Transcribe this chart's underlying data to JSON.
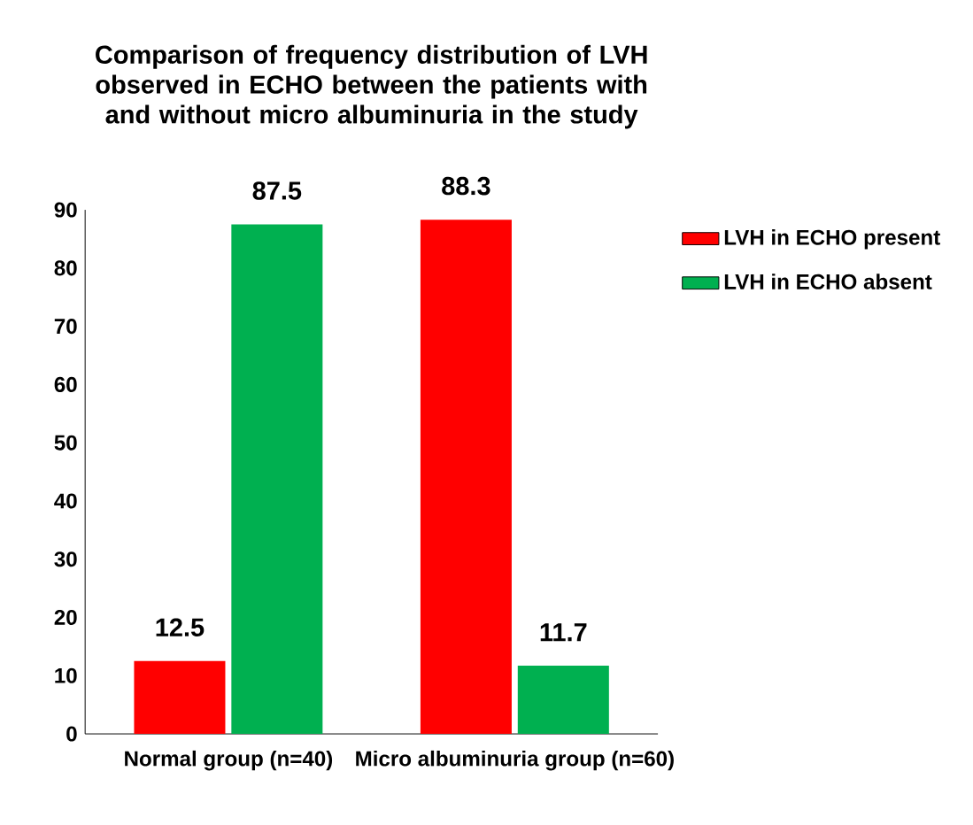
{
  "chart_data": {
    "type": "bar",
    "title": "Comparison of frequency distribution of LVH observed in ECHO between the patients with and without micro albuminuria in the study",
    "categories": [
      "Normal group (n=40)",
      "Micro albuminuria group (n=60)"
    ],
    "series": [
      {
        "name": "LVH in ECHO present",
        "color": "#ff0000",
        "values": [
          12.5,
          88.3
        ]
      },
      {
        "name": "LVH in ECHO absent",
        "color": "#00b050",
        "values": [
          87.5,
          11.7
        ]
      }
    ],
    "ylim": [
      0,
      90
    ],
    "yticks": [
      0,
      10,
      20,
      30,
      40,
      50,
      60,
      70,
      80,
      90
    ],
    "data_labels": true,
    "legend": "top right",
    "grid": false
  }
}
